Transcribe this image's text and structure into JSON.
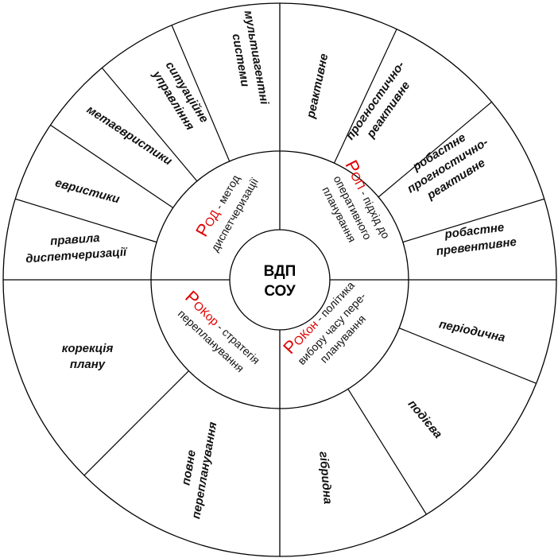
{
  "center": {
    "line1": "ВДП",
    "line2": "СОУ"
  },
  "colors": {
    "accent": "#e00000",
    "line": "#000000"
  },
  "quadrants": {
    "rod": {
      "big": "Р",
      "abbr": "ОД",
      "rest": " - метод",
      "line2": "диспетчеризації",
      "segments": [
        {
          "lines": [
            "правила",
            "диспетчеризації"
          ]
        },
        {
          "lines": [
            "евристики"
          ]
        },
        {
          "lines": [
            "метаевристики"
          ]
        },
        {
          "lines": [
            "ситуаційне",
            "управління"
          ]
        },
        {
          "lines": [
            "мультиагентні",
            "системи"
          ]
        }
      ]
    },
    "rop": {
      "big": "Р",
      "abbr": "ОП",
      "rest": " - підхід до",
      "line2": "оперативного",
      "line3": "планування",
      "segments": [
        {
          "lines": [
            "реактивне"
          ]
        },
        {
          "lines": [
            "прогностично-",
            "реактивне"
          ]
        },
        {
          "lines": [
            "робастне",
            "прогностично-",
            "реактивне"
          ]
        },
        {
          "lines": [
            "робастне",
            "превентивне"
          ]
        }
      ]
    },
    "rokor": {
      "big": "Р",
      "abbr": "ОКор",
      "rest": " - стратегія",
      "line2": "перепланування",
      "segments": [
        {
          "lines": [
            "корекція",
            "плану"
          ]
        },
        {
          "lines": [
            "повне",
            "перепланування"
          ]
        }
      ]
    },
    "rokon": {
      "big": "Р",
      "abbr": "ОКон",
      "rest": " - політика",
      "line2": "вибору часу пере-",
      "line3": "планування",
      "segments": [
        {
          "lines": [
            "періодична"
          ]
        },
        {
          "lines": [
            "подієва"
          ]
        },
        {
          "lines": [
            "гібридна"
          ]
        }
      ]
    }
  }
}
